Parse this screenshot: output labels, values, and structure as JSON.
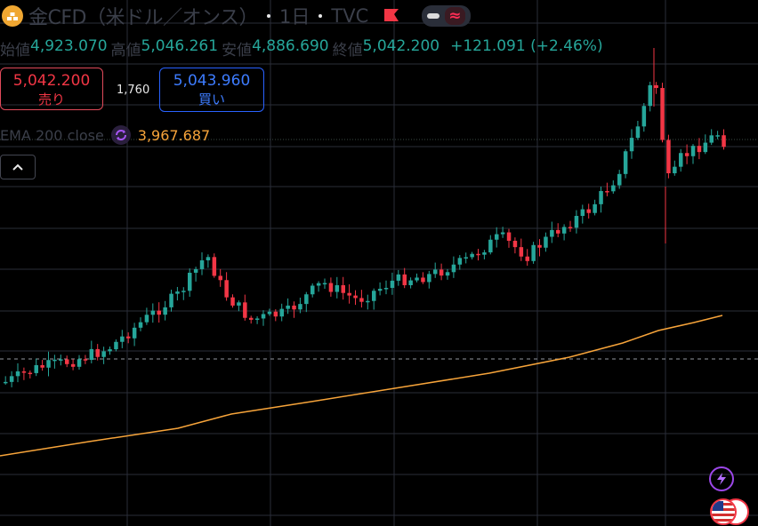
{
  "header": {
    "title": "金CFD（米ドル／オンス）",
    "interval": "1日",
    "source": "TVC",
    "logo_icon": "gold-bars-icon",
    "flag_icon": "flag-icon",
    "approx_symbol": "≈"
  },
  "ohlc": {
    "open_label": "始値",
    "open": "4,923.070",
    "high_label": "高値",
    "high": "5,046.261",
    "low_label": "安値",
    "low": "4,886.690",
    "close_label": "終値",
    "close": "5,042.200",
    "change": "+121.091 (+2.46%)"
  },
  "trade": {
    "sell_price": "5,042.200",
    "sell_label": "売り",
    "spread": "1,760",
    "buy_price": "5,043.960",
    "buy_label": "買い"
  },
  "indicator": {
    "label": "EMA 200 close",
    "value": "3,967.687",
    "icon": "sync-icon"
  },
  "colors": {
    "up": "#26a69a",
    "down": "#f23645",
    "ema": "#f7a43a",
    "grid": "#2a2e39"
  },
  "icons": {
    "collapse": "chevron-up-icon",
    "bolt": "lightning-icon",
    "flags": "us-flag-icon"
  }
}
